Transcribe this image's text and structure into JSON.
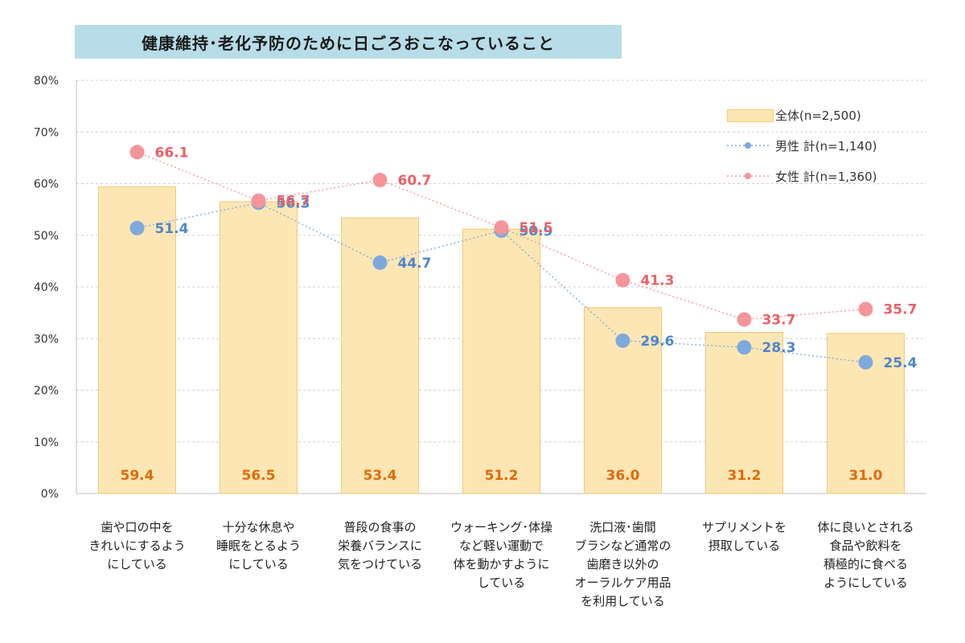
{
  "chart_data": {
    "type": "bar",
    "title": "健康維持･老化予防のために日ごろおこなっていること",
    "categories": [
      "歯や口の中を\nきれいにするよう\nにしている",
      "十分な休息や\n睡眠をとるよう\nにしている",
      "普段の食事の\n栄養バランスに\n気をつけている",
      "ウォーキング･体操\nなど軽い運動で\n体を動かすように\nしている",
      "洗口液･歯間\nブラシなど通常の\n歯磨き以外の\nオーラルケア用品\nを利用している",
      "サプリメントを\n摂取している",
      "体に良いとされる\n食品や飲料を\n積極的に食べる\nようにしている"
    ],
    "series": [
      {
        "name": "全体(n=2,500)",
        "kind": "bar",
        "color": "#fce6b4",
        "label_color": "#e06b0a",
        "values": [
          59.4,
          56.5,
          53.4,
          51.2,
          36.0,
          31.2,
          31.0
        ],
        "labels": [
          "59.4",
          "56.5",
          "53.4",
          "51.2",
          "36.0",
          "31.2",
          "31.0"
        ]
      },
      {
        "name": "男性 計(n=1,140)",
        "kind": "line",
        "color": "#7ea9dc",
        "label_color": "#4f86cc",
        "values": [
          51.4,
          56.3,
          44.7,
          50.9,
          29.6,
          28.3,
          25.4
        ],
        "labels": [
          "51.4",
          "56.3",
          "44.7",
          "50.9",
          "29.6",
          "28.3",
          "25.4"
        ]
      },
      {
        "name": "女性 計(n=1,360)",
        "kind": "line",
        "color": "#f4959a",
        "label_color": "#ec5f64",
        "values": [
          66.1,
          56.7,
          60.7,
          51.5,
          41.3,
          33.7,
          35.7
        ],
        "labels": [
          "66.1",
          "56.7",
          "60.7",
          "51.5",
          "41.3",
          "33.7",
          "35.7"
        ]
      }
    ],
    "yticks": [
      "0%",
      "10%",
      "20%",
      "30%",
      "40%",
      "50%",
      "60%",
      "70%",
      "80%"
    ],
    "ylim": [
      0,
      80
    ],
    "grid": true,
    "legend_position": "top-right"
  }
}
